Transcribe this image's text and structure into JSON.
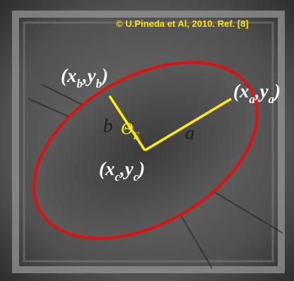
{
  "credit": "© U.Pineda et Al, 2010. Ref. [8]",
  "labels": {
    "point_b": [
      {
        "text": "(x"
      },
      {
        "text": "b",
        "sub": true
      },
      {
        "text": ",y"
      },
      {
        "text": "b",
        "sub": true
      },
      {
        "text": ")"
      }
    ],
    "point_a": [
      {
        "text": "(x"
      },
      {
        "text": "a",
        "sub": true
      },
      {
        "text": ",y"
      },
      {
        "text": "a",
        "sub": true
      },
      {
        "text": ")"
      }
    ],
    "point_c": [
      {
        "text": "(x"
      },
      {
        "text": "c",
        "sub": true
      },
      {
        "text": ",y"
      },
      {
        "text": "c",
        "sub": true
      },
      {
        "text": ")"
      }
    ],
    "minor_axis": [
      {
        "text": "b"
      }
    ],
    "major_axis": [
      {
        "text": "a"
      }
    ],
    "angle": [
      {
        "text": "Θ"
      },
      {
        "text": "E",
        "sub": true
      }
    ]
  }
}
